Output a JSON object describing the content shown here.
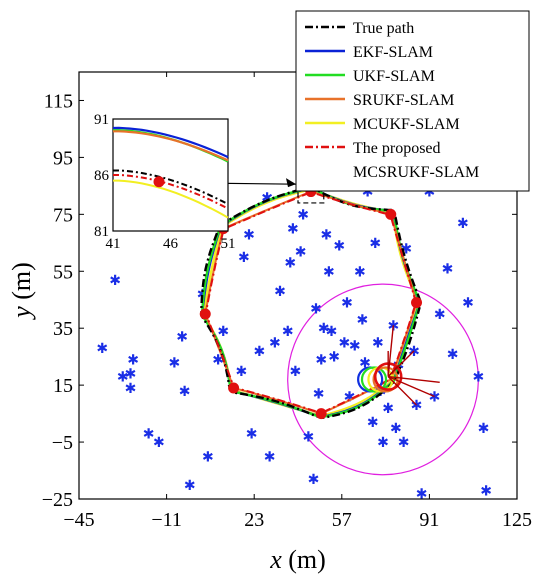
{
  "chart_data": {
    "type": "line",
    "title": "",
    "xlabel": "x (m)",
    "ylabel": "y (m)",
    "xlabel_var": "x",
    "xlabel_unit": " (m)",
    "ylabel_var": "y",
    "ylabel_unit": " (m)",
    "xlim": [
      -45,
      125
    ],
    "ylim": [
      -25,
      125
    ],
    "x_ticks": [
      -45,
      -11,
      23,
      57,
      91,
      125
    ],
    "y_ticks": [
      -25,
      -5,
      15,
      35,
      55,
      75,
      95,
      115
    ],
    "x_tick_labels": [
      "−45",
      "−11",
      "23",
      "57",
      "91",
      "125"
    ],
    "y_tick_labels": [
      "−25",
      "−5",
      "15",
      "35",
      "55",
      "75",
      "95",
      "115"
    ],
    "grid": false,
    "legend_position": "top-right",
    "series": [
      {
        "name": "True path",
        "color": "#000000",
        "style": "dashdot"
      },
      {
        "name": "EKF-SLAM",
        "color": "#0a22d6",
        "style": "solid"
      },
      {
        "name": "UKF-SLAM",
        "color": "#22dd22",
        "style": "solid"
      },
      {
        "name": "SRUKF-SLAM",
        "color": "#e8722a",
        "style": "solid"
      },
      {
        "name": "MCUKF-SLAM",
        "color": "#f2ef22",
        "style": "solid"
      },
      {
        "name": "The proposed\nMCSRUKF-SLAM",
        "name_lines": [
          "The proposed",
          "MCSRUKF-SLAM"
        ],
        "color": "#e01010",
        "style": "dashdot"
      }
    ],
    "path_vertices": [
      [
        86,
        44
      ],
      [
        76,
        75
      ],
      [
        45,
        83
      ],
      [
        11,
        70
      ],
      [
        4,
        40
      ],
      [
        15,
        14
      ],
      [
        49,
        5
      ],
      [
        76,
        17
      ],
      [
        86,
        44
      ]
    ],
    "waypoints": [
      [
        45,
        83
      ],
      [
        76,
        75
      ],
      [
        86,
        44
      ],
      [
        11,
        70
      ],
      [
        4,
        40
      ],
      [
        15,
        14
      ],
      [
        49,
        5
      ]
    ],
    "landmarks": [
      [
        -36,
        28
      ],
      [
        -28,
        18
      ],
      [
        -25,
        14
      ],
      [
        -25,
        19
      ],
      [
        -24,
        24
      ],
      [
        -18,
        -2
      ],
      [
        -14,
        -5
      ],
      [
        -8,
        23
      ],
      [
        -5,
        32
      ],
      [
        -4,
        13
      ],
      [
        -2,
        -20
      ],
      [
        3,
        47
      ],
      [
        5,
        -10
      ],
      [
        9,
        24
      ],
      [
        11,
        34
      ],
      [
        18,
        20
      ],
      [
        21,
        68
      ],
      [
        22,
        -2
      ],
      [
        25,
        27
      ],
      [
        28,
        81
      ],
      [
        29,
        -10
      ],
      [
        31,
        30
      ],
      [
        33,
        48
      ],
      [
        36,
        34
      ],
      [
        37,
        58
      ],
      [
        38,
        70
      ],
      [
        39,
        20
      ],
      [
        41,
        62
      ],
      [
        42,
        75
      ],
      [
        44,
        -3
      ],
      [
        45,
        92
      ],
      [
        46,
        -18
      ],
      [
        47,
        42
      ],
      [
        48,
        12
      ],
      [
        49,
        24
      ],
      [
        50,
        35
      ],
      [
        51,
        68
      ],
      [
        52,
        55
      ],
      [
        53,
        34
      ],
      [
        54,
        25
      ],
      [
        56,
        64
      ],
      [
        58,
        30
      ],
      [
        59,
        44
      ],
      [
        62,
        29
      ],
      [
        64,
        55
      ],
      [
        65,
        38
      ],
      [
        66,
        23
      ],
      [
        67,
        83
      ],
      [
        69,
        2
      ],
      [
        70,
        65
      ],
      [
        71,
        30
      ],
      [
        72,
        13
      ],
      [
        73,
        -5
      ],
      [
        75,
        7
      ],
      [
        77,
        36
      ],
      [
        78,
        0
      ],
      [
        79,
        22
      ],
      [
        81,
        -5
      ],
      [
        82,
        63
      ],
      [
        85,
        27
      ],
      [
        86,
        8
      ],
      [
        88,
        -23
      ],
      [
        91,
        83
      ],
      [
        93,
        11
      ],
      [
        95,
        40
      ],
      [
        98,
        56
      ],
      [
        100,
        26
      ],
      [
        104,
        72
      ],
      [
        106,
        44
      ],
      [
        110,
        18
      ],
      [
        112,
        0
      ],
      [
        113,
        -22
      ],
      [
        -31,
        52
      ],
      [
        1,
        86
      ],
      [
        19,
        60
      ],
      [
        60,
        11
      ],
      [
        -15,
        71
      ]
    ],
    "sensor_range": {
      "center": [
        73,
        17
      ],
      "radius": 37
    },
    "inset": {
      "xlim": [
        41,
        51
      ],
      "ylim": [
        81,
        91
      ],
      "x_ticks": [
        "41",
        "46",
        "51"
      ],
      "y_ticks": [
        "81",
        "86",
        "91"
      ],
      "zoom_region": {
        "x": [
          40,
          50
        ],
        "y": [
          79,
          87
        ]
      }
    }
  }
}
